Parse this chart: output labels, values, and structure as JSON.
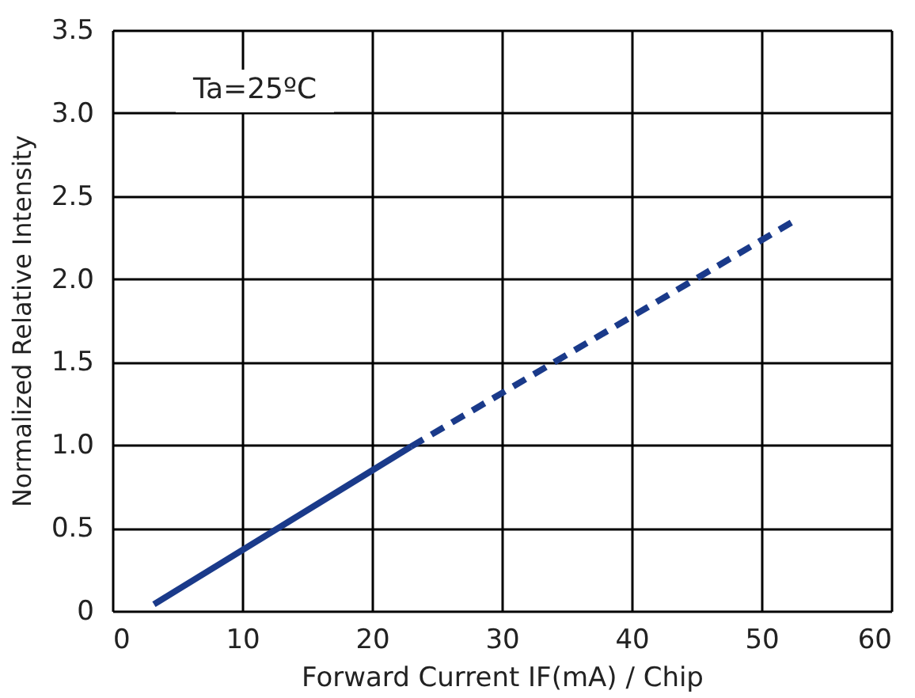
{
  "chart_data": {
    "type": "line",
    "xlabel": "Forward Current IF(mA) / Chip",
    "ylabel": "Normalized Relative Intensity",
    "annotations": [
      "Ta=25ºC"
    ],
    "series": [
      {
        "color": "#1a3a8a",
        "x": [
          3.2,
          23
        ],
        "values": [
          0.04,
          0.99
        ],
        "line_style": "solid"
      },
      {
        "color": "#1a3a8a",
        "x": [
          23,
          52.3
        ],
        "values": [
          0.99,
          2.34
        ],
        "line_style": "dashed"
      }
    ],
    "xlim": [
      0,
      60
    ],
    "xticks": [
      0,
      10,
      20,
      30,
      40,
      50,
      60
    ],
    "ylim": [
      0,
      3.5
    ],
    "yticks": [
      0,
      0.5,
      {
        "value": 1,
        "label": "1.0"
      },
      1.5,
      {
        "value": 2,
        "label": "2.0"
      },
      2.5,
      {
        "value": 3,
        "label": "3.0"
      },
      3.5
    ],
    "grid": true,
    "legend": false,
    "marker": "none"
  }
}
